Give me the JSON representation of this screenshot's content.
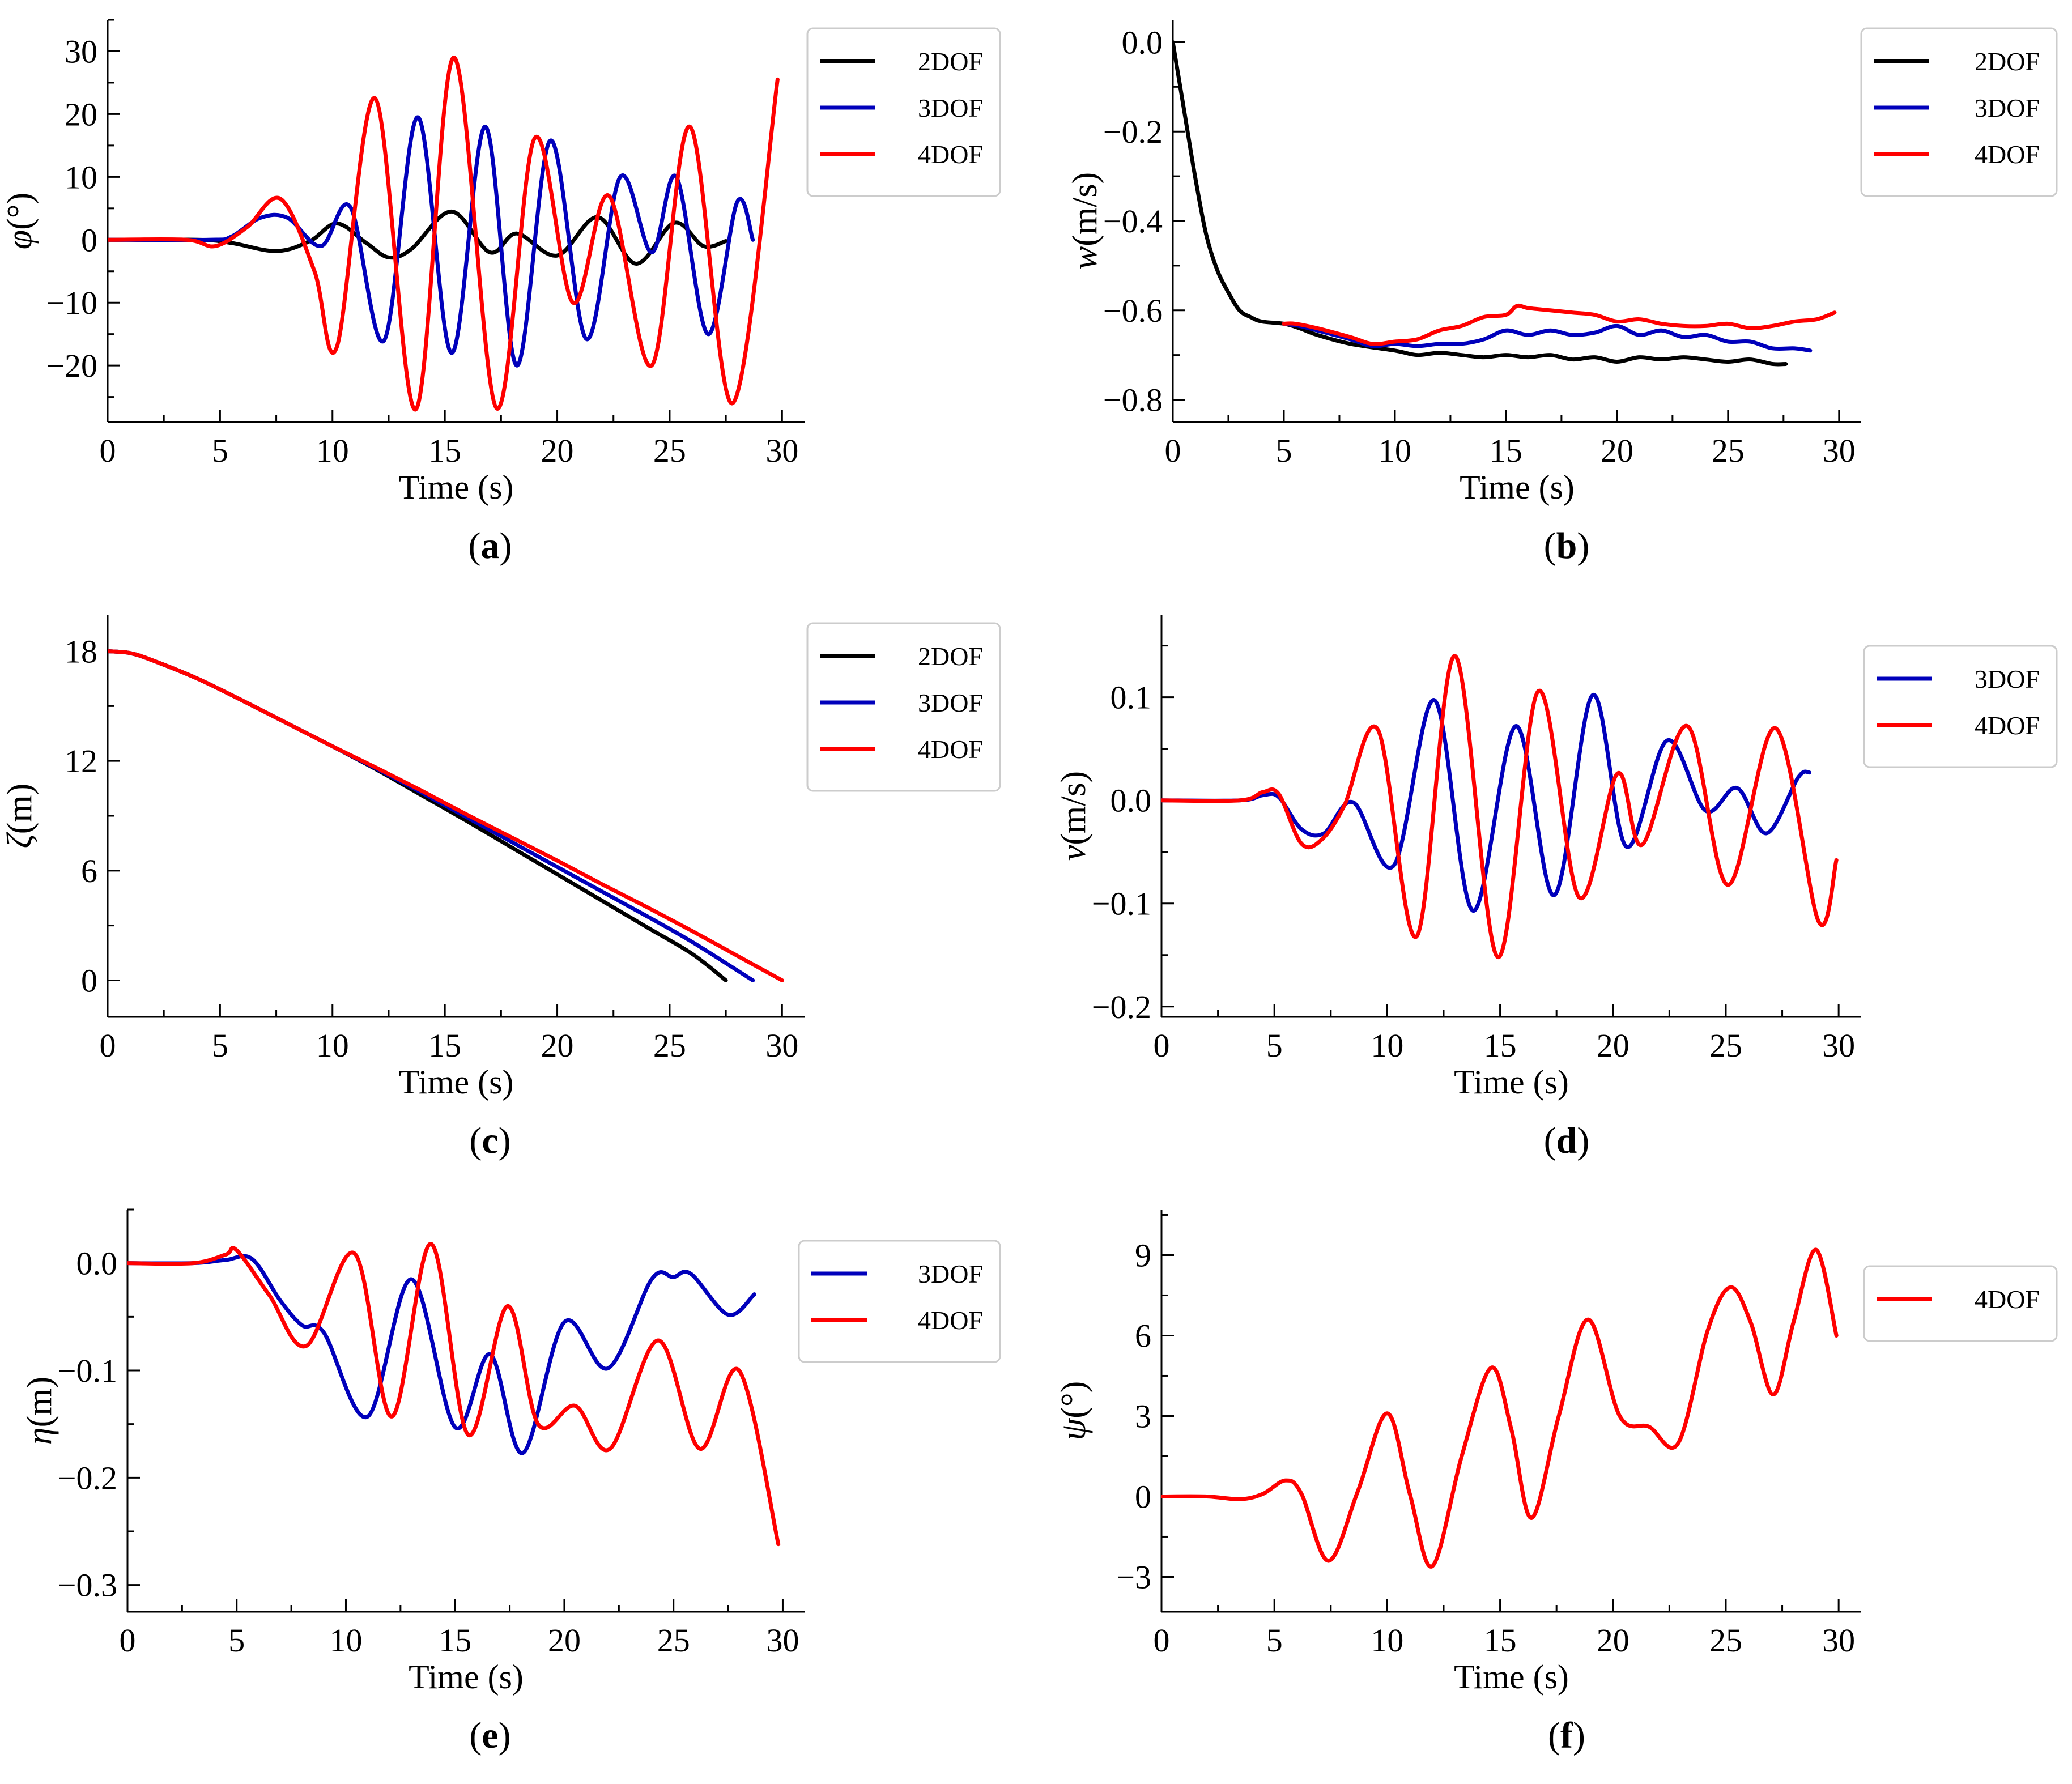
{
  "chart_data": [
    {
      "type": "line",
      "panel": "a",
      "caption": {
        "open": "(",
        "letter": "a",
        "close": ")"
      },
      "xlabel": "Time (s)",
      "ylabel": {
        "symbol": "φ",
        "unit": "(°)"
      },
      "xlim": [
        0,
        31
      ],
      "ylim": [
        -29,
        35
      ],
      "xticks": [
        0,
        5,
        10,
        15,
        20,
        25,
        30
      ],
      "xtick_labels": [
        "0",
        "5",
        "10",
        "15",
        "20",
        "25",
        "30"
      ],
      "yticks": [
        -20,
        -10,
        0,
        10,
        20,
        30
      ],
      "ytick_labels": [
        "−20",
        "−10",
        "0",
        "10",
        "20",
        "30"
      ],
      "legend_position": "top-right",
      "series": [
        {
          "name": "2DOF",
          "color": "#000000",
          "x": [
            0,
            4,
            5.5,
            7.5,
            9,
            10.2,
            11.5,
            12.5,
            13.5,
            15.3,
            17,
            18.2,
            20,
            21.8,
            23.5,
            25.2,
            26.5,
            27.5
          ],
          "y": [
            0,
            0,
            -0.5,
            -1.8,
            -0.2,
            2.6,
            -0.5,
            -2.8,
            -1.5,
            4.5,
            -2,
            1,
            -2.5,
            3.6,
            -3.8,
            2.7,
            -1,
            -0.2
          ]
        },
        {
          "name": "3DOF",
          "color": "#0000bb",
          "x": [
            0,
            4.5,
            5.5,
            6.8,
            8,
            9.5,
            10.8,
            12.3,
            13.8,
            15.3,
            16.8,
            18.2,
            19.7,
            21.3,
            22.8,
            24.2,
            25.3,
            26.7,
            28,
            28.7
          ],
          "y": [
            0,
            0,
            0.5,
            3.5,
            3.5,
            -1,
            5.2,
            -16,
            19.5,
            -18,
            18,
            -20,
            15.8,
            -15.8,
            10,
            -2,
            10,
            -15,
            6,
            0
          ]
        },
        {
          "name": "4DOF",
          "color": "#ff0000",
          "x": [
            0,
            3.5,
            4.8,
            6.2,
            7.7,
            9.2,
            10.2,
            11.9,
            13.7,
            15.4,
            17.3,
            19,
            20.7,
            22.3,
            24.2,
            25.9,
            27.8,
            29.8
          ],
          "y": [
            0,
            0,
            -1,
            2,
            6.5,
            -5,
            -17,
            22.5,
            -27,
            29,
            -26.8,
            16.2,
            -10,
            7,
            -20,
            18,
            -26,
            25.5
          ]
        }
      ]
    },
    {
      "type": "line",
      "panel": "b",
      "caption": {
        "open": "(",
        "letter": "b",
        "close": ")"
      },
      "xlabel": "Time (s)",
      "ylabel": {
        "symbol": "w",
        "unit": "(m/s)"
      },
      "xlim": [
        0,
        31
      ],
      "ylim": [
        -0.85,
        0.05
      ],
      "xticks": [
        0,
        5,
        10,
        15,
        20,
        25,
        30
      ],
      "xtick_labels": [
        "0",
        "5",
        "10",
        "15",
        "20",
        "25",
        "30"
      ],
      "yticks": [
        -0.8,
        -0.6,
        -0.4,
        -0.2,
        0.0
      ],
      "ytick_labels": [
        "−0.8",
        "−0.6",
        "−0.4",
        "−0.2",
        "0.0"
      ],
      "legend_position": "top-right",
      "series": [
        {
          "name": "2DOF",
          "color": "#000000",
          "x": [
            0,
            0.5,
            1,
            1.5,
            2,
            2.5,
            3,
            3.5,
            4,
            5,
            5.7,
            6.5,
            8,
            10,
            11,
            12,
            13,
            14,
            15,
            16,
            17,
            18,
            19,
            20,
            21,
            22,
            23,
            24,
            25,
            26,
            27,
            27.6
          ],
          "y": [
            0,
            -0.15,
            -0.3,
            -0.43,
            -0.51,
            -0.56,
            -0.6,
            -0.615,
            -0.625,
            -0.63,
            -0.64,
            -0.655,
            -0.675,
            -0.69,
            -0.7,
            -0.695,
            -0.7,
            -0.705,
            -0.7,
            -0.705,
            -0.7,
            -0.71,
            -0.705,
            -0.715,
            -0.705,
            -0.71,
            -0.705,
            -0.71,
            -0.715,
            -0.71,
            -0.72,
            -0.72
          ]
        },
        {
          "name": "3DOF",
          "color": "#0000bb",
          "x": [
            5,
            5.7,
            6.5,
            8,
            9,
            10,
            11,
            12,
            13,
            14,
            15,
            16,
            17,
            18,
            19,
            20,
            21,
            22,
            23,
            24,
            25,
            26,
            27,
            28,
            28.7
          ],
          "y": [
            -0.63,
            -0.635,
            -0.645,
            -0.665,
            -0.68,
            -0.675,
            -0.68,
            -0.675,
            -0.675,
            -0.665,
            -0.645,
            -0.655,
            -0.645,
            -0.655,
            -0.65,
            -0.635,
            -0.655,
            -0.645,
            -0.66,
            -0.655,
            -0.67,
            -0.67,
            -0.685,
            -0.685,
            -0.69
          ]
        },
        {
          "name": "4DOF",
          "color": "#ff0000",
          "x": [
            5,
            5.5,
            6.5,
            8,
            9,
            10,
            11,
            12,
            13,
            14,
            15,
            15.5,
            16,
            17,
            18,
            19,
            20,
            21,
            22,
            23,
            24,
            25,
            26,
            27,
            28,
            29,
            29.8
          ],
          "y": [
            -0.63,
            -0.63,
            -0.64,
            -0.66,
            -0.675,
            -0.67,
            -0.665,
            -0.645,
            -0.635,
            -0.615,
            -0.61,
            -0.59,
            -0.595,
            -0.6,
            -0.605,
            -0.61,
            -0.625,
            -0.62,
            -0.63,
            -0.635,
            -0.635,
            -0.63,
            -0.64,
            -0.635,
            -0.625,
            -0.62,
            -0.605
          ]
        }
      ]
    },
    {
      "type": "line",
      "panel": "c",
      "caption": {
        "open": "(",
        "letter": "c",
        "close": ")"
      },
      "xlabel": "Time (s)",
      "ylabel": {
        "symbol": "ζ",
        "unit": "(m)"
      },
      "xlim": [
        0,
        31
      ],
      "ylim": [
        -2,
        20
      ],
      "xticks": [
        0,
        5,
        10,
        15,
        20,
        25,
        30
      ],
      "xtick_labels": [
        "0",
        "5",
        "10",
        "15",
        "20",
        "25",
        "30"
      ],
      "yticks": [
        0,
        6,
        12,
        18
      ],
      "ytick_labels": [
        "0",
        "6",
        "12",
        "18"
      ],
      "legend_position": "top-right",
      "series": [
        {
          "name": "2DOF",
          "color": "#000000",
          "x": [
            0,
            1,
            2,
            4,
            6,
            8,
            10,
            12,
            14,
            16,
            18,
            20,
            22,
            24,
            26,
            27.5
          ],
          "y": [
            18,
            17.9,
            17.5,
            16.5,
            15.3,
            14.05,
            12.8,
            11.5,
            10.1,
            8.7,
            7.25,
            5.8,
            4.35,
            2.9,
            1.45,
            0
          ]
        },
        {
          "name": "3DOF",
          "color": "#0000bb",
          "x": [
            0,
            1,
            2,
            4,
            6,
            8,
            10,
            12,
            14,
            16,
            18,
            20,
            22,
            24,
            26,
            28.7
          ],
          "y": [
            18,
            17.9,
            17.5,
            16.5,
            15.3,
            14.05,
            12.8,
            11.55,
            10.25,
            8.9,
            7.55,
            6.2,
            4.85,
            3.5,
            2.1,
            0
          ]
        },
        {
          "name": "4DOF",
          "color": "#ff0000",
          "x": [
            0,
            1,
            2,
            4,
            6,
            8,
            10,
            12,
            14,
            16,
            18,
            20,
            22,
            24,
            26,
            28,
            30
          ],
          "y": [
            18,
            17.9,
            17.5,
            16.5,
            15.3,
            14.05,
            12.8,
            11.6,
            10.35,
            9.05,
            7.8,
            6.55,
            5.25,
            4,
            2.7,
            1.35,
            0
          ]
        }
      ]
    },
    {
      "type": "line",
      "panel": "d",
      "caption": {
        "open": "(",
        "letter": "d",
        "close": ")"
      },
      "xlabel": "Time (s)",
      "ylabel": {
        "symbol": "v",
        "unit": "(m/s)"
      },
      "xlim": [
        0,
        31
      ],
      "ylim": [
        -0.21,
        0.18
      ],
      "xticks": [
        0,
        5,
        10,
        15,
        20,
        25,
        30
      ],
      "xtick_labels": [
        "0",
        "5",
        "10",
        "15",
        "20",
        "25",
        "30"
      ],
      "yticks": [
        -0.2,
        -0.1,
        0.0,
        0.1
      ],
      "ytick_labels": [
        "−0.2",
        "−0.1",
        "0.0",
        "0.1"
      ],
      "legend_position": "top-right",
      "series": [
        {
          "name": "3DOF",
          "color": "#0000bb",
          "x": [
            0,
            3.5,
            4.5,
            5.2,
            6.2,
            7.2,
            8.5,
            10.3,
            12.1,
            13.8,
            15.7,
            17.4,
            19.1,
            20.6,
            22.4,
            24.1,
            25.5,
            26.8,
            28.2,
            28.7
          ],
          "y": [
            0,
            0,
            0.005,
            0.003,
            -0.028,
            -0.032,
            -0.002,
            -0.063,
            0.097,
            -0.107,
            0.072,
            -0.092,
            0.102,
            -0.045,
            0.058,
            -0.01,
            0.012,
            -0.032,
            0.022,
            0.027
          ]
        },
        {
          "name": "4DOF",
          "color": "#ff0000",
          "x": [
            0,
            3.5,
            4.5,
            5.2,
            6.2,
            7.1,
            8.1,
            9.6,
            11.3,
            13,
            14.9,
            16.7,
            18.5,
            20.2,
            21.3,
            23.3,
            25.1,
            27.2,
            29.1,
            29.9
          ],
          "y": [
            0,
            0,
            0.008,
            0.006,
            -0.042,
            -0.038,
            -0.005,
            0.068,
            -0.132,
            0.14,
            -0.152,
            0.106,
            -0.094,
            0.026,
            -0.043,
            0.072,
            -0.082,
            0.07,
            -0.117,
            -0.058
          ]
        }
      ]
    },
    {
      "type": "line",
      "panel": "e",
      "caption": {
        "open": "(",
        "letter": "e",
        "close": ")"
      },
      "xlabel": "Time (s)",
      "ylabel": {
        "symbol": "η",
        "unit": "(m)"
      },
      "xlim": [
        0,
        31
      ],
      "ylim": [
        -0.325,
        0.05
      ],
      "xticks": [
        0,
        5,
        10,
        15,
        20,
        25,
        30
      ],
      "xtick_labels": [
        "0",
        "5",
        "10",
        "15",
        "20",
        "25",
        "30"
      ],
      "yticks": [
        -0.3,
        -0.2,
        -0.1,
        0.0
      ],
      "ytick_labels": [
        "−0.3",
        "−0.2",
        "−0.1",
        "0.0"
      ],
      "legend_position": "top-right",
      "series": [
        {
          "name": "3DOF",
          "color": "#0000bb",
          "x": [
            0,
            3,
            4.5,
            5.7,
            7,
            8,
            9,
            11,
            13,
            15,
            16.6,
            18.1,
            20,
            22,
            24,
            25,
            25.8,
            27.5,
            28.7
          ],
          "y": [
            0,
            0,
            0.003,
            0.004,
            -0.035,
            -0.058,
            -0.065,
            -0.143,
            -0.015,
            -0.153,
            -0.085,
            -0.177,
            -0.055,
            -0.098,
            -0.015,
            -0.013,
            -0.01,
            -0.048,
            -0.029
          ]
        },
        {
          "name": "4DOF",
          "color": "#ff0000",
          "x": [
            0,
            3,
            4.5,
            5,
            6.5,
            8.2,
            10.4,
            12.1,
            13.9,
            15.6,
            17.4,
            18.8,
            20.5,
            22.1,
            24.3,
            26.2,
            28,
            29.8
          ],
          "y": [
            0,
            0,
            0.008,
            0.012,
            -0.03,
            -0.077,
            0.009,
            -0.143,
            0.018,
            -0.16,
            -0.04,
            -0.15,
            -0.133,
            -0.173,
            -0.072,
            -0.173,
            -0.1,
            -0.262
          ]
        }
      ]
    },
    {
      "type": "line",
      "panel": "f",
      "caption": {
        "open": "(",
        "letter": "f",
        "close": ")"
      },
      "xlabel": "Time (s)",
      "ylabel": {
        "symbol": "ψ",
        "unit": "(°)"
      },
      "xlim": [
        0,
        31
      ],
      "ylim": [
        -4.3,
        10.7
      ],
      "xticks": [
        0,
        5,
        10,
        15,
        20,
        25,
        30
      ],
      "xtick_labels": [
        "0",
        "5",
        "10",
        "15",
        "20",
        "25",
        "30"
      ],
      "yticks": [
        -3,
        0,
        3,
        6,
        9
      ],
      "ytick_labels": [
        "−3",
        "0",
        "3",
        "6",
        "9"
      ],
      "legend_position": "top-right",
      "series": [
        {
          "name": "4DOF",
          "color": "#ff0000",
          "x": [
            0,
            2,
            3.5,
            4.5,
            5.5,
            6.2,
            7.4,
            8.7,
            10,
            11,
            12,
            13.3,
            14.6,
            15.5,
            16.4,
            17.6,
            18.9,
            20.3,
            21.6,
            22.9,
            24.2,
            25.2,
            26.1,
            27.1,
            28,
            29,
            29.9
          ],
          "y": [
            0,
            0,
            -0.1,
            0.1,
            0.6,
            0.1,
            -2.4,
            0.2,
            3.1,
            0.1,
            -2.6,
            1.5,
            4.8,
            2.5,
            -0.8,
            3,
            6.6,
            3,
            2.6,
            2,
            6.2,
            7.8,
            6.5,
            3.8,
            6.5,
            9.2,
            6
          ]
        }
      ]
    }
  ]
}
